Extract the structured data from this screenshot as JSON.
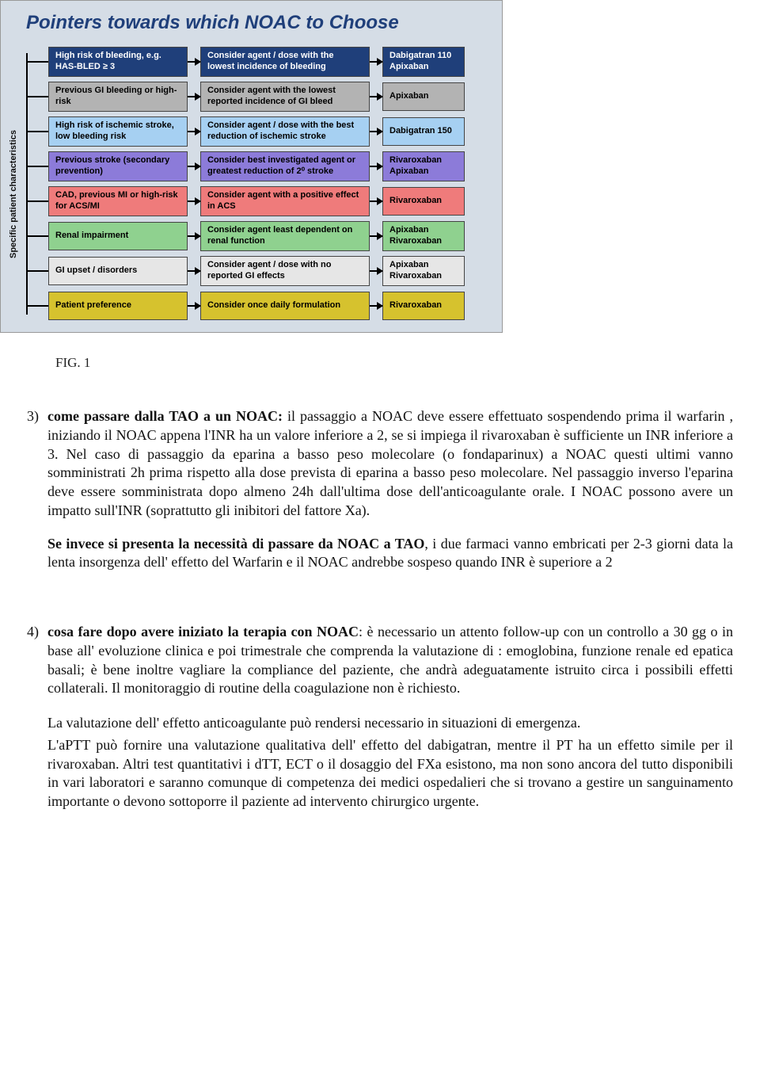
{
  "figure": {
    "title": "Pointers towards which NOAC to Choose",
    "ylabel": "Specific patient characteristics",
    "background": "#d5dde6",
    "title_color": "#1f3f7a",
    "rows": [
      {
        "c1": "High risk of bleeding, e.g. HAS-BLED ≥ 3",
        "c2": "Consider agent / dose with the lowest incidence of bleeding",
        "c3": "Dabigatran 110\nApixaban",
        "bg": "#1f3f7a",
        "fg": "#ffffff"
      },
      {
        "c1": "Previous GI bleeding or high-risk",
        "c2": "Consider agent with the lowest reported incidence of GI bleed",
        "c3": "Apixaban",
        "bg": "#b3b3b3",
        "fg": "#000000"
      },
      {
        "c1": "High risk of ischemic stroke, low bleeding risk",
        "c2": "Consider agent / dose with the best reduction of ischemic stroke",
        "c3": "Dabigatran 150",
        "bg": "#a6d0f2",
        "fg": "#000000"
      },
      {
        "c1": "Previous stroke (secondary prevention)",
        "c2": "Consider best investigated agent or greatest reduction of 2⁰ stroke",
        "c3": "Rivaroxaban\nApixaban",
        "bg": "#8c7bd9",
        "fg": "#000000"
      },
      {
        "c1": "CAD, previous MI or high-risk for ACS/MI",
        "c2": "Consider agent with a positive effect in ACS",
        "c3": "Rivaroxaban",
        "bg": "#ef7b7b",
        "fg": "#000000"
      },
      {
        "c1": "Renal impairment",
        "c2": "Consider agent least dependent on renal function",
        "c3": "Apixaban\nRivaroxaban",
        "bg": "#8fd18f",
        "fg": "#000000"
      },
      {
        "c1": "GI upset / disorders",
        "c2": "Consider agent / dose with no reported GI effects",
        "c3": "Apixaban\nRivaroxaban",
        "bg": "#e6e6e6",
        "fg": "#000000"
      },
      {
        "c1": "Patient preference",
        "c2": "Consider once daily formulation",
        "c3": "Rivaroxaban",
        "bg": "#d6c22e",
        "fg": "#000000"
      }
    ],
    "caption": "FIG. 1"
  },
  "doc": {
    "s3_num": "3)",
    "s3_lead": "come passare dalla TAO a un NOAC:",
    "s3_body": " il passaggio a NOAC deve essere effettuato sospendendo prima il warfarin , iniziando il NOAC appena l'INR ha un valore inferiore a 2, se si impiega il rivaroxaban è sufficiente un INR inferiore a 3. Nel caso di passaggio da eparina a basso peso molecolare (o fondaparinux) a NOAC questi ultimi vanno somministrati 2h prima rispetto alla dose prevista di eparina a basso peso molecolare. Nel passaggio inverso l'eparina deve essere somministrata dopo almeno 24h dall'ultima dose dell'anticoagulante orale. I NOAC possono avere un impatto sull'INR (soprattutto gli inibitori del fattore Xa).",
    "s3_p2_lead": "Se invece si presenta la necessità di passare da NOAC a TAO",
    "s3_p2_body": ", i due farmaci vanno embricati  per 2-3 giorni data la lenta insorgenza dell' effetto del Warfarin e il NOAC andrebbe sospeso quando  INR è superiore a 2",
    "s4_num": "4)",
    "s4_lead": "cosa fare dopo avere iniziato la terapia con NOAC",
    "s4_body": ": è necessario  un attento follow-up con un  controllo a 30 gg  o in base all' evoluzione clinica e poi trimestrale che comprenda  la valutazione di : emoglobina, funzione renale ed epatica basali; è bene inoltre vagliare la compliance del paziente, che andrà adeguatamente istruito circa i possibili effetti collaterali. Il monitoraggio di routine della coagulazione non è richiesto.",
    "s4_p2": "La valutazione dell' effetto anticoagulante può rendersi necessario  in situazioni di emergenza.",
    "s4_p3": "L'aPTT può fornire una valutazione qualitativa  dell' effetto del dabigatran, mentre il PT  ha un effetto simile per il rivaroxaban. Altri test  quantitativi i dTT, ECT o il dosaggio del FXa esistono, ma non sono ancora del tutto disponibili in vari laboratori e saranno comunque di competenza dei medici ospedalieri che si trovano a gestire un sanguinamento  importante o devono sottoporre il paziente ad intervento chirurgico urgente."
  }
}
